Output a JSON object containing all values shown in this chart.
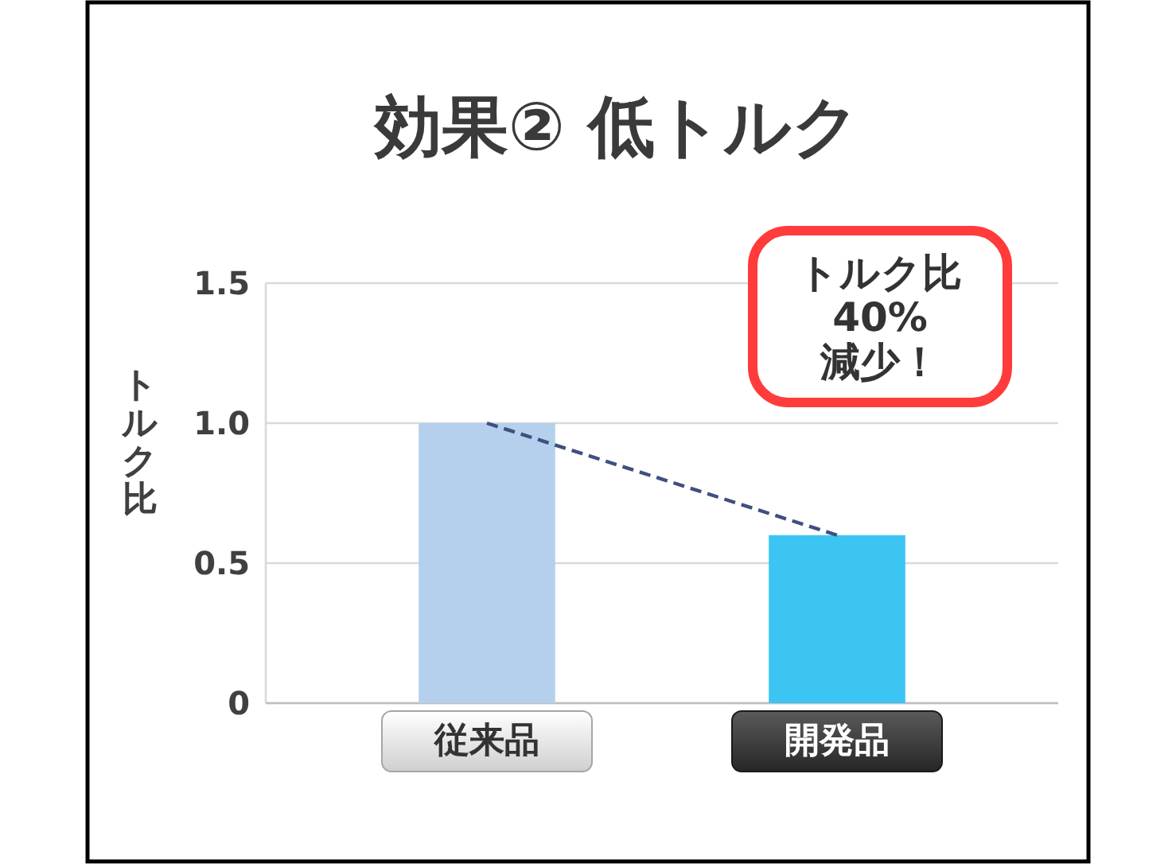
{
  "chart_data": {
    "type": "bar",
    "title": "効果② 低トルク",
    "ylabel": "トルク比",
    "categories": [
      "従来品",
      "開発品"
    ],
    "series": [
      {
        "type": "bar",
        "values": [
          1.0,
          0.6
        ],
        "colors": [
          "#b4d0ec",
          "#3cc4f2"
        ]
      },
      {
        "type": "line",
        "values": [
          1.0,
          0.6
        ],
        "color": "#3f4f7f",
        "line_style": "dashed"
      }
    ],
    "ylim": [
      0,
      1.5
    ],
    "yticks": [
      0,
      0.5,
      {
        "value": 1,
        "label": "1.0"
      },
      1.5
    ],
    "grid": "y",
    "annotations": [
      "トルク比\n40%\n減少！"
    ]
  }
}
